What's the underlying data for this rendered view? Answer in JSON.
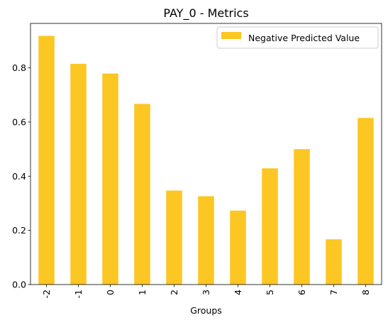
{
  "chart_data": {
    "type": "bar",
    "title": "PAY_0 - Metrics",
    "xlabel": "Groups",
    "ylabel": "",
    "categories": [
      "-2",
      "-1",
      "0",
      "1",
      "2",
      "3",
      "4",
      "5",
      "6",
      "7",
      "8"
    ],
    "series": [
      {
        "name": "Negative Predicted Value",
        "values": [
          0.918,
          0.815,
          0.779,
          0.667,
          0.347,
          0.326,
          0.273,
          0.429,
          0.5,
          0.167,
          0.615
        ],
        "color": "#fcc623"
      }
    ],
    "ylim": [
      0,
      0.964
    ],
    "yticks": [
      "0.0",
      "0.2",
      "0.4",
      "0.6",
      "0.8"
    ],
    "ytick_values": [
      0.0,
      0.2,
      0.4,
      0.6,
      0.8
    ],
    "legend_position": "top-right",
    "grid": false
  }
}
